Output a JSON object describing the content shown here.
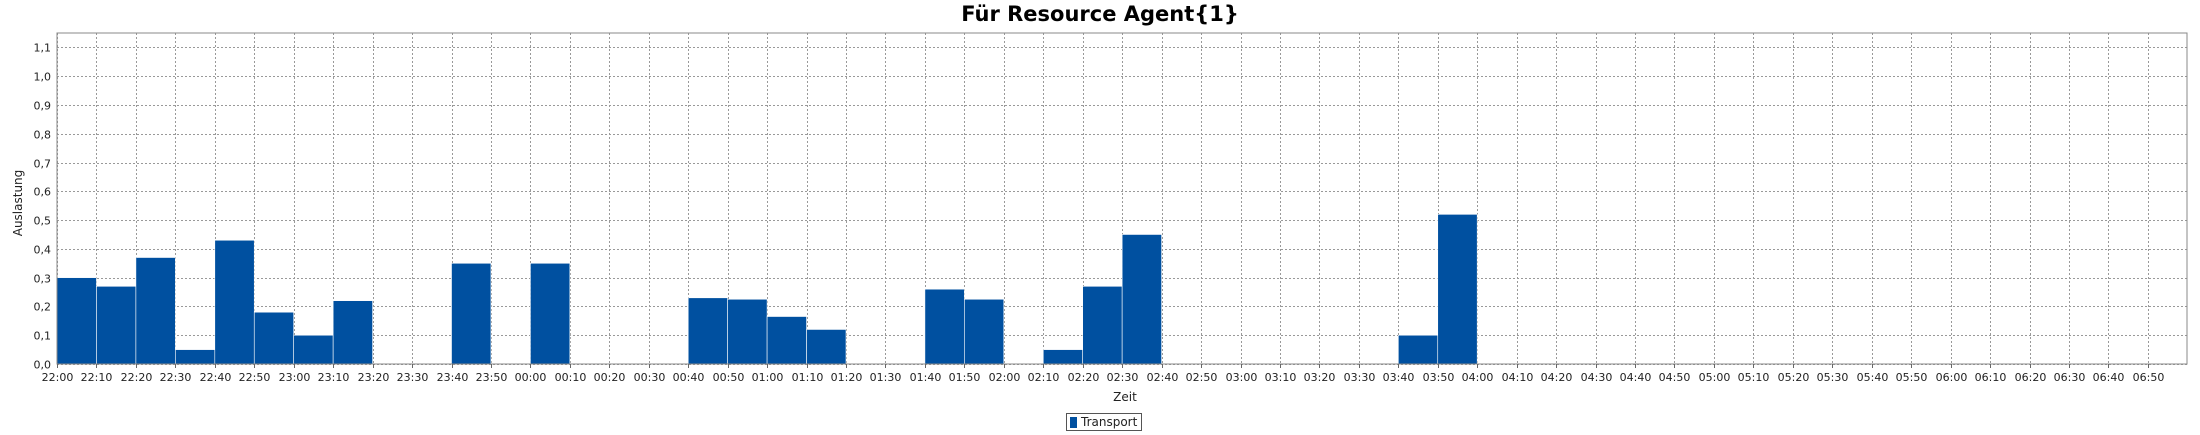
{
  "chart_data": {
    "type": "bar",
    "title": "Für Resource Agent{1}",
    "xlabel": "Zeit",
    "ylabel": "Auslastung",
    "ylim": [
      0,
      1.15
    ],
    "yticks": [
      "0,0",
      "0,1",
      "0,2",
      "0,3",
      "0,4",
      "0,5",
      "0,6",
      "0,7",
      "0,8",
      "0,9",
      "1,0",
      "1,1"
    ],
    "categories": [
      "22:00",
      "22:10",
      "22:20",
      "22:30",
      "22:40",
      "22:50",
      "23:00",
      "23:10",
      "23:20",
      "23:30",
      "23:40",
      "23:50",
      "00:00",
      "00:10",
      "00:20",
      "00:30",
      "00:40",
      "00:50",
      "01:00",
      "01:10",
      "01:20",
      "01:30",
      "01:40",
      "01:50",
      "02:00",
      "02:10",
      "02:20",
      "02:30",
      "02:40",
      "02:50",
      "03:00",
      "03:10",
      "03:20",
      "03:30",
      "03:40",
      "03:50",
      "04:00",
      "04:10",
      "04:20",
      "04:30",
      "04:40",
      "04:50",
      "05:00",
      "05:10",
      "05:20",
      "05:30",
      "05:40",
      "05:50",
      "06:00",
      "06:10",
      "06:20",
      "06:30",
      "06:40",
      "06:50"
    ],
    "grid": true,
    "legend_position": "bottom-center",
    "series": [
      {
        "name": "Transport",
        "color": "#0050a0",
        "values": [
          0.3,
          0.27,
          0.37,
          0.05,
          0.43,
          0.18,
          0.1,
          0.22,
          0,
          0,
          0.35,
          0,
          0.35,
          0,
          0,
          0,
          0.23,
          0.225,
          0.165,
          0.12,
          0,
          0,
          0.26,
          0.225,
          0,
          0.05,
          0.27,
          0.45,
          0,
          0,
          0,
          0,
          0,
          0,
          0.1,
          0.52,
          0,
          0,
          0,
          0,
          0,
          0,
          0,
          0,
          0,
          0,
          0,
          0,
          0,
          0,
          0,
          0,
          0,
          0
        ]
      }
    ]
  }
}
